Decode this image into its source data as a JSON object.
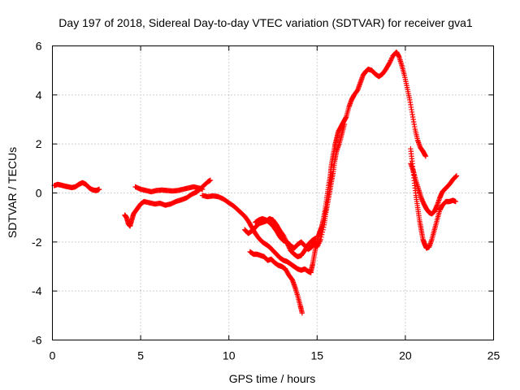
{
  "chart_data": {
    "type": "scatter",
    "title": "Day 197 of 2018, Sidereal Day-to-day VTEC variation (SDTVAR) for receiver gva1",
    "xlabel": "GPS time / hours",
    "ylabel": "SDTVAR / TECUs",
    "xlim": [
      0,
      25
    ],
    "ylim": [
      -6,
      6
    ],
    "x_ticks": [
      "0",
      "5",
      "10",
      "15",
      "20",
      "25"
    ],
    "y_ticks": [
      "-6",
      "-4",
      "-2",
      "0",
      "2",
      "4",
      "6"
    ],
    "grid": true,
    "marker": "+",
    "color": "#ff0000",
    "series": [
      {
        "points": [
          [
            0.1,
            0.3
          ],
          [
            0.3,
            0.35
          ],
          [
            0.5,
            0.32
          ],
          [
            0.7,
            0.28
          ],
          [
            0.9,
            0.25
          ],
          [
            1.1,
            0.22
          ],
          [
            1.3,
            0.25
          ],
          [
            1.5,
            0.35
          ],
          [
            1.7,
            0.42
          ],
          [
            1.9,
            0.35
          ],
          [
            2.1,
            0.2
          ],
          [
            2.3,
            0.12
          ],
          [
            2.5,
            0.1
          ],
          [
            2.65,
            0.15
          ]
        ]
      },
      {
        "points": [
          [
            4.1,
            -0.9
          ],
          [
            4.2,
            -1.0
          ],
          [
            4.3,
            -1.25
          ],
          [
            4.4,
            -1.35
          ],
          [
            4.5,
            -1.1
          ],
          [
            4.6,
            -0.85
          ],
          [
            4.8,
            -0.65
          ],
          [
            5.0,
            -0.45
          ],
          [
            5.2,
            -0.35
          ],
          [
            5.5,
            -0.4
          ],
          [
            5.8,
            -0.45
          ],
          [
            6.1,
            -0.42
          ],
          [
            6.4,
            -0.5
          ],
          [
            6.7,
            -0.45
          ],
          [
            7.0,
            -0.35
          ],
          [
            7.3,
            -0.28
          ],
          [
            7.6,
            -0.2
          ],
          [
            7.9,
            -0.05
          ],
          [
            8.2,
            0.05
          ],
          [
            8.5,
            0.25
          ],
          [
            8.8,
            0.45
          ],
          [
            8.95,
            0.52
          ]
        ]
      },
      {
        "points": [
          [
            4.7,
            0.25
          ],
          [
            5.0,
            0.15
          ],
          [
            5.3,
            0.1
          ],
          [
            5.6,
            0.05
          ],
          [
            5.9,
            0.1
          ],
          [
            6.2,
            0.12
          ],
          [
            6.5,
            0.1
          ],
          [
            6.8,
            0.08
          ],
          [
            7.1,
            0.1
          ],
          [
            7.4,
            0.15
          ],
          [
            7.7,
            0.2
          ],
          [
            8.0,
            0.25
          ],
          [
            8.3,
            0.2
          ],
          [
            8.5,
            0.15
          ]
        ]
      },
      {
        "points": [
          [
            8.5,
            -0.1
          ],
          [
            8.8,
            -0.15
          ],
          [
            9.1,
            -0.12
          ],
          [
            9.4,
            -0.15
          ],
          [
            9.7,
            -0.25
          ],
          [
            10.0,
            -0.4
          ],
          [
            10.3,
            -0.55
          ],
          [
            10.6,
            -0.75
          ],
          [
            10.9,
            -0.95
          ],
          [
            11.1,
            -1.15
          ],
          [
            11.3,
            -1.4
          ],
          [
            11.5,
            -1.65
          ],
          [
            11.7,
            -1.85
          ],
          [
            11.9,
            -2.0
          ],
          [
            12.1,
            -2.1
          ],
          [
            12.3,
            -2.2
          ],
          [
            12.5,
            -2.35
          ],
          [
            12.7,
            -2.5
          ],
          [
            12.9,
            -2.65
          ],
          [
            13.1,
            -2.75
          ],
          [
            13.3,
            -2.8
          ],
          [
            13.5,
            -2.9
          ],
          [
            13.7,
            -3.0
          ],
          [
            13.9,
            -3.1
          ],
          [
            14.1,
            -3.15
          ],
          [
            14.3,
            -3.1
          ],
          [
            14.5,
            -3.2
          ],
          [
            14.65,
            -3.25
          ]
        ]
      },
      {
        "points": [
          [
            10.9,
            -1.5
          ],
          [
            11.1,
            -1.65
          ],
          [
            11.3,
            -1.55
          ],
          [
            11.5,
            -1.4
          ],
          [
            11.7,
            -1.25
          ],
          [
            11.9,
            -1.2
          ],
          [
            12.1,
            -1.15
          ],
          [
            12.3,
            -1.05
          ],
          [
            12.5,
            -1.1
          ],
          [
            12.7,
            -1.3
          ],
          [
            12.9,
            -1.55
          ],
          [
            13.1,
            -1.75
          ],
          [
            13.3,
            -2.05
          ],
          [
            13.5,
            -2.35
          ],
          [
            13.7,
            -2.5
          ],
          [
            13.9,
            -2.6
          ],
          [
            14.1,
            -2.55
          ],
          [
            14.3,
            -2.35
          ],
          [
            14.5,
            -2.1
          ],
          [
            14.7,
            -1.95
          ],
          [
            14.9,
            -1.85
          ]
        ]
      },
      {
        "points": [
          [
            11.2,
            -2.4
          ],
          [
            11.4,
            -2.5
          ],
          [
            11.6,
            -2.5
          ],
          [
            11.8,
            -2.55
          ],
          [
            12.0,
            -2.6
          ],
          [
            12.2,
            -2.75
          ],
          [
            12.4,
            -2.7
          ],
          [
            12.6,
            -2.85
          ],
          [
            12.8,
            -2.95
          ],
          [
            13.0,
            -3.0
          ],
          [
            13.2,
            -3.1
          ],
          [
            13.4,
            -3.35
          ],
          [
            13.6,
            -3.55
          ],
          [
            13.75,
            -3.85
          ],
          [
            13.9,
            -4.2
          ],
          [
            14.05,
            -4.6
          ],
          [
            14.15,
            -4.9
          ]
        ]
      },
      {
        "points": [
          [
            11.5,
            -1.2
          ],
          [
            11.7,
            -1.1
          ],
          [
            11.9,
            -1.05
          ],
          [
            12.1,
            -1.1
          ],
          [
            12.3,
            -1.2
          ],
          [
            12.5,
            -1.35
          ],
          [
            12.7,
            -1.55
          ],
          [
            12.9,
            -1.8
          ],
          [
            13.1,
            -1.95
          ],
          [
            13.3,
            -2.0
          ],
          [
            13.5,
            -2.15
          ],
          [
            13.7,
            -2.25
          ],
          [
            13.9,
            -2.1
          ],
          [
            14.1,
            -2.0
          ],
          [
            14.3,
            -2.15
          ],
          [
            14.5,
            -2.3
          ],
          [
            14.7,
            -2.2
          ],
          [
            14.9,
            -2.0
          ]
        ]
      },
      {
        "points": [
          [
            14.65,
            -3.2
          ],
          [
            14.75,
            -2.9
          ],
          [
            14.85,
            -2.5
          ],
          [
            14.95,
            -2.1
          ],
          [
            15.05,
            -1.8
          ],
          [
            15.15,
            -1.6
          ],
          [
            15.25,
            -1.4
          ],
          [
            15.35,
            -1.1
          ],
          [
            15.45,
            -0.7
          ],
          [
            15.55,
            -0.2
          ],
          [
            15.65,
            0.3
          ],
          [
            15.75,
            0.7
          ],
          [
            15.8,
            1.1
          ],
          [
            15.9,
            1.5
          ],
          [
            16.0,
            1.9
          ],
          [
            16.1,
            2.2
          ],
          [
            16.2,
            2.5
          ],
          [
            16.35,
            2.7
          ],
          [
            16.5,
            2.9
          ],
          [
            16.65,
            3.1
          ],
          [
            16.8,
            3.5
          ],
          [
            16.95,
            3.8
          ],
          [
            17.1,
            4.0
          ],
          [
            17.3,
            4.2
          ],
          [
            17.45,
            4.5
          ],
          [
            17.6,
            4.8
          ],
          [
            17.75,
            4.95
          ],
          [
            17.9,
            5.05
          ],
          [
            18.1,
            5.0
          ],
          [
            18.3,
            4.85
          ],
          [
            18.5,
            4.75
          ],
          [
            18.7,
            4.85
          ],
          [
            18.9,
            5.05
          ],
          [
            19.1,
            5.3
          ],
          [
            19.3,
            5.6
          ],
          [
            19.5,
            5.75
          ],
          [
            19.65,
            5.55
          ],
          [
            19.8,
            5.2
          ],
          [
            19.95,
            4.8
          ],
          [
            20.1,
            4.3
          ],
          [
            20.25,
            3.8
          ],
          [
            20.4,
            3.2
          ],
          [
            20.55,
            2.6
          ],
          [
            20.7,
            2.15
          ],
          [
            20.85,
            1.85
          ],
          [
            21.0,
            1.7
          ],
          [
            21.15,
            1.5
          ]
        ]
      },
      {
        "points": [
          [
            15.0,
            -2.2
          ],
          [
            15.2,
            -1.9
          ],
          [
            15.4,
            -1.3
          ],
          [
            15.5,
            -0.8
          ],
          [
            15.6,
            -0.4
          ],
          [
            15.7,
            0.0
          ],
          [
            15.8,
            0.4
          ],
          [
            15.9,
            0.8
          ],
          [
            16.0,
            1.3
          ],
          [
            16.1,
            1.7
          ],
          [
            16.25,
            2.0
          ],
          [
            16.4,
            2.4
          ],
          [
            16.55,
            2.8
          ]
        ]
      },
      {
        "points": [
          [
            20.3,
            1.8
          ],
          [
            20.4,
            1.2
          ],
          [
            20.5,
            0.5
          ],
          [
            20.6,
            -0.1
          ],
          [
            20.7,
            -0.6
          ],
          [
            20.8,
            -1.1
          ],
          [
            20.9,
            -1.5
          ],
          [
            21.0,
            -1.9
          ],
          [
            21.1,
            -2.1
          ],
          [
            21.2,
            -2.25
          ],
          [
            21.35,
            -2.2
          ],
          [
            21.5,
            -1.9
          ],
          [
            21.65,
            -1.5
          ],
          [
            21.8,
            -1.1
          ],
          [
            21.95,
            -0.7
          ],
          [
            22.1,
            -0.5
          ],
          [
            22.3,
            -0.35
          ],
          [
            22.5,
            -0.35
          ],
          [
            22.7,
            -0.3
          ],
          [
            22.85,
            -0.35
          ]
        ]
      },
      {
        "points": [
          [
            20.3,
            1.2
          ],
          [
            20.45,
            0.9
          ],
          [
            20.6,
            0.5
          ],
          [
            20.75,
            0.15
          ],
          [
            20.9,
            -0.2
          ],
          [
            21.05,
            -0.45
          ],
          [
            21.2,
            -0.65
          ],
          [
            21.35,
            -0.8
          ],
          [
            21.5,
            -0.85
          ],
          [
            21.65,
            -0.75
          ],
          [
            21.8,
            -0.5
          ],
          [
            21.95,
            -0.2
          ],
          [
            22.1,
            0.05
          ],
          [
            22.3,
            0.2
          ],
          [
            22.5,
            0.35
          ],
          [
            22.7,
            0.55
          ],
          [
            22.9,
            0.7
          ]
        ]
      }
    ]
  }
}
